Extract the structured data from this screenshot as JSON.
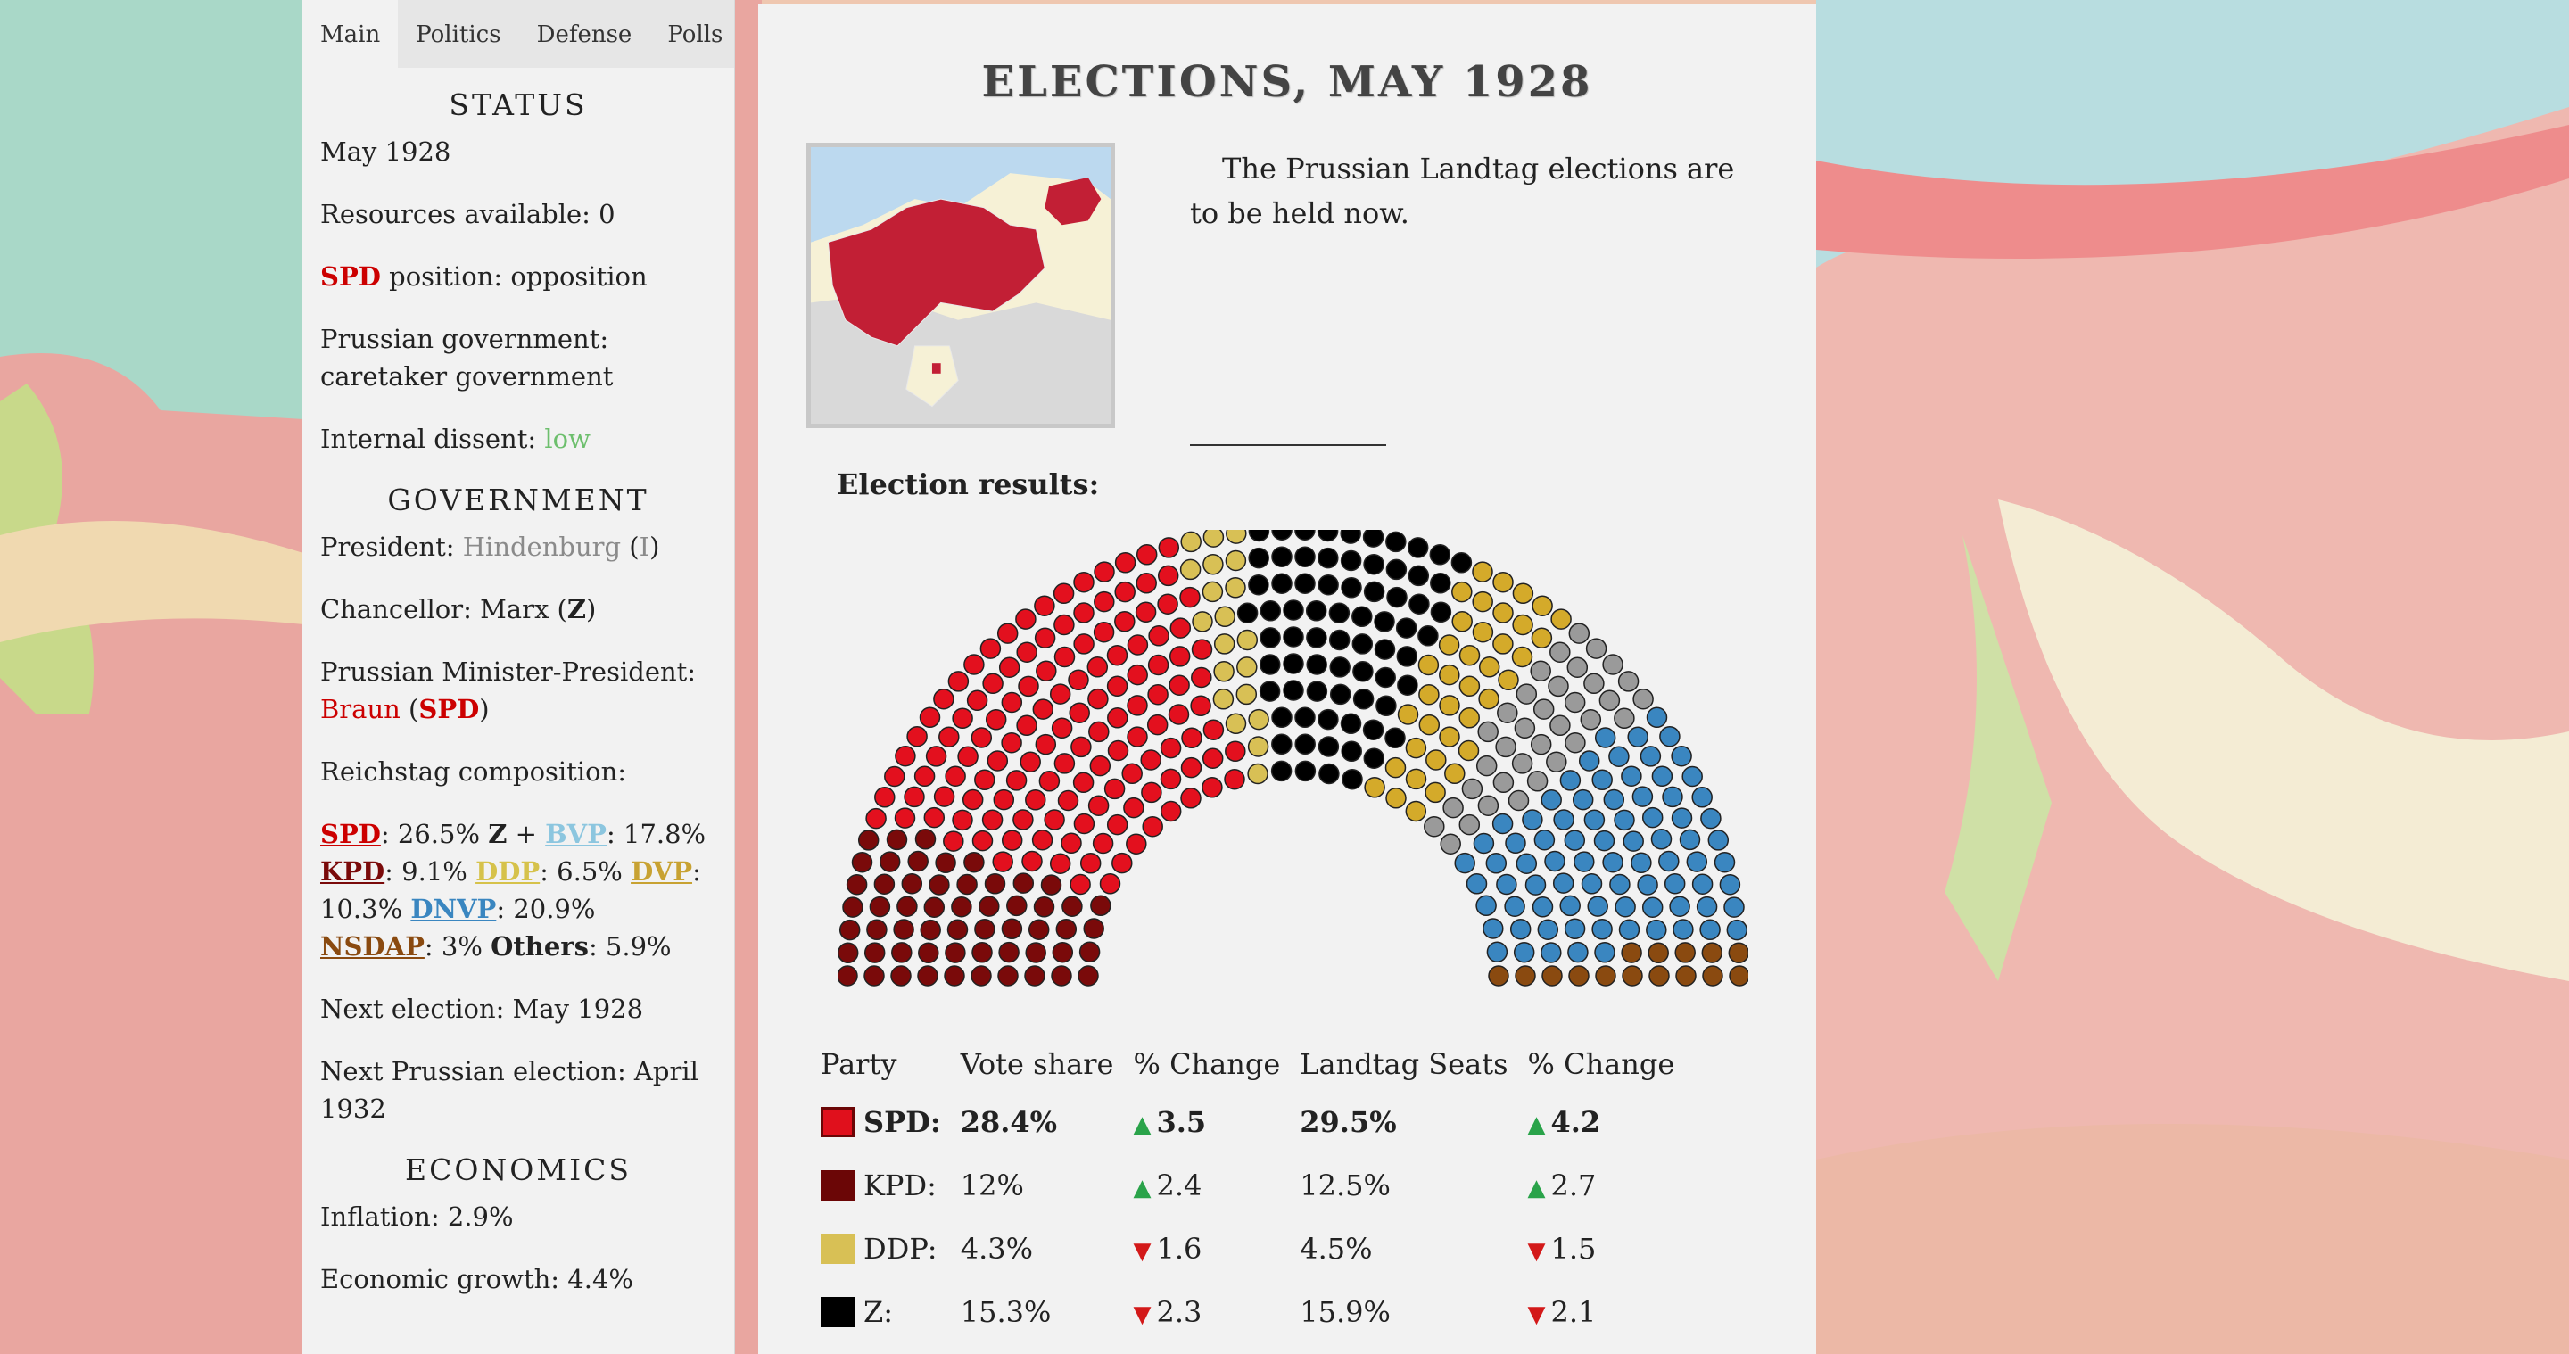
{
  "tabs": [
    "Main",
    "Politics",
    "Defense",
    "Polls"
  ],
  "status": {
    "heading": "STATUS",
    "date": "May 1928",
    "resources": "Resources available: 0",
    "spd_label": "SPD",
    "spd_position": " position: opposition",
    "prussian_gov": "Prussian government: caretaker government",
    "dissent_label": "Internal dissent: ",
    "dissent_value": "low"
  },
  "government": {
    "heading": "GOVERNMENT",
    "president_label": "President: ",
    "president_name": "Hindenburg",
    "president_party": "I",
    "chancellor_label": "Chancellor: ",
    "chancellor_name": "Marx",
    "chancellor_party": "Z",
    "minister_label": "Prussian Minister-President: ",
    "minister_name": "Braun",
    "minister_party": "SPD",
    "reichstag_label": "Reichstag composition:",
    "reichstag": {
      "spd": "SPD",
      "spd_val": ": 26.5% ",
      "z": "Z",
      "plus": " + ",
      "bvp": "BVP",
      "bvp_val": ": 17.8%",
      "kpd": "KPD",
      "kpd_val": ": 9.1% ",
      "ddp": "DDP",
      "ddp_val": ": 6.5% ",
      "dvp": "DVP",
      "dvp_val": ": 10.3% ",
      "dnvp": "DNVP",
      "dnvp_val": ": 20.9% ",
      "nsdap": "NSDAP",
      "nsdap_val": ": 3% ",
      "others": "Others",
      "others_val": ": 5.9%"
    },
    "next_election": "Next election: May 1928",
    "next_prussian": "Next Prussian election: April 1932"
  },
  "economics": {
    "heading": "ECONOMICS",
    "inflation": "Inflation: 2.9%",
    "growth": "Economic growth: 4.4%"
  },
  "event": {
    "title": "ELECTIONS, MAY 1928",
    "text": "The Prussian Landtag elections are to be held now.",
    "results_label": "Election results:"
  },
  "table": {
    "headers": [
      "Party",
      "Vote share",
      "% Change",
      "Landtag Seats",
      "% Change"
    ],
    "rows": [
      {
        "party": "SPD:",
        "color": "#e0101c",
        "vote": "28.4%",
        "vote_dir": "up",
        "vote_change": "3.5",
        "seats": "29.5%",
        "seat_dir": "up",
        "seat_change": "4.2"
      },
      {
        "party": "KPD:",
        "color": "#6b0606",
        "vote": "12%",
        "vote_dir": "up",
        "vote_change": "2.4",
        "seats": "12.5%",
        "seat_dir": "up",
        "seat_change": "2.7"
      },
      {
        "party": "DDP:",
        "color": "#d8c055",
        "vote": "4.3%",
        "vote_dir": "down",
        "vote_change": "1.6",
        "seats": "4.5%",
        "seat_dir": "down",
        "seat_change": "1.5"
      },
      {
        "party": "Z:",
        "color": "#000000",
        "vote": "15.3%",
        "vote_dir": "down",
        "vote_change": "2.3",
        "seats": "15.9%",
        "seat_dir": "down",
        "seat_change": "2.1"
      }
    ]
  },
  "parliament": {
    "total_seats": 450,
    "groups": [
      {
        "party": "KPD",
        "seats": 56,
        "color": "#7a0a0a"
      },
      {
        "party": "SPD",
        "seats": 133,
        "color": "#e3101e"
      },
      {
        "party": "DDP",
        "seats": 20,
        "color": "#d8c055"
      },
      {
        "party": "Z",
        "seats": 72,
        "color": "#000000"
      },
      {
        "party": "DVP",
        "seats": 38,
        "color": "#d4aa2a"
      },
      {
        "party": "Other",
        "seats": 35,
        "color": "#9a9a9a"
      },
      {
        "party": "DNVP",
        "seats": 81,
        "color": "#3a86c0"
      },
      {
        "party": "NSDAP",
        "seats": 15,
        "color": "#8a4a10"
      }
    ]
  },
  "colors": {
    "spd": "#c00000",
    "z": "#000000",
    "bvp": "#8cc6df",
    "kpd": "#7a0a0a",
    "ddp": "#d6c24a",
    "dvp": "#c8a232",
    "dnvp": "#3a86c0",
    "nsdap": "#8a4a10",
    "others": "#222222"
  }
}
